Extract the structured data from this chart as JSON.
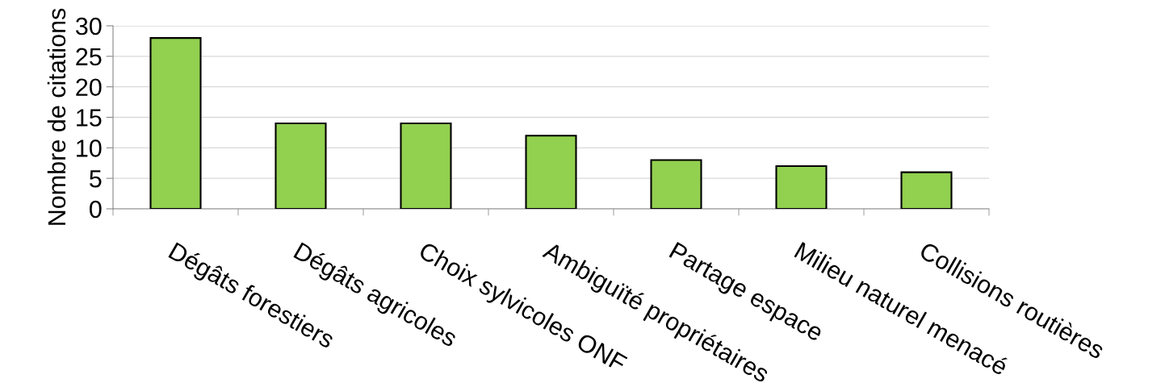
{
  "chart_data": {
    "type": "bar",
    "ylabel": "Nombre de citations",
    "categories": [
      "Dégâts forestiers",
      "Dégâts agricoles",
      "Choix sylvicoles ONF",
      "Ambiguïté propriétaires",
      "Partage espace",
      "Milieu naturel menacé",
      "Collisions routières"
    ],
    "values": [
      28,
      14,
      14,
      12,
      8,
      7,
      6
    ],
    "color": "#92d050",
    "ylim": [
      0,
      30
    ],
    "yticks": [
      0,
      5,
      10,
      15,
      20,
      25,
      30
    ],
    "grid": "y"
  }
}
